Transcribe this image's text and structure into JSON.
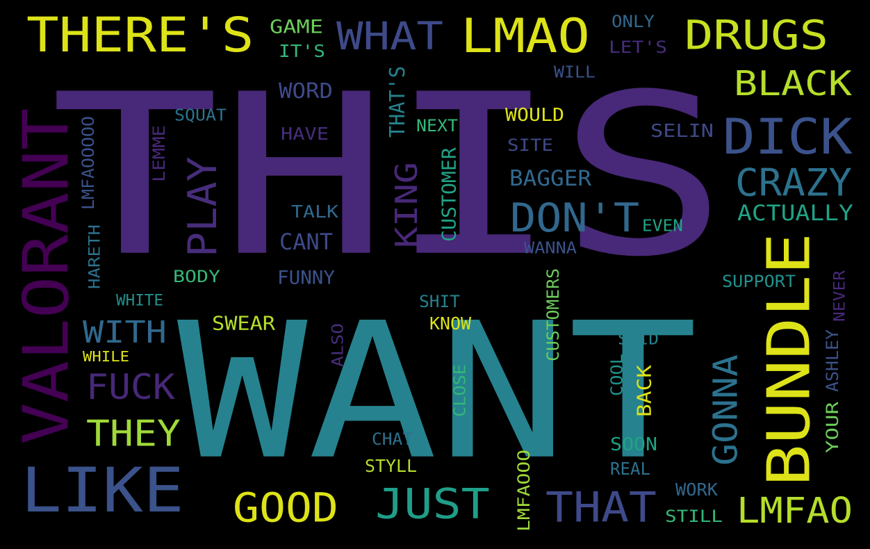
{
  "words": [
    {
      "id": "this",
      "text": "THIS",
      "color": "#482878"
    },
    {
      "id": "want",
      "text": "WANT",
      "color": "#26828e"
    },
    {
      "id": "valorant",
      "text": "VALORANT",
      "color": "#440154"
    },
    {
      "id": "bundle",
      "text": "BUNDLE",
      "color": "#dde318"
    },
    {
      "id": "like",
      "text": "LIKE",
      "color": "#3b528b"
    },
    {
      "id": "theres",
      "text": "THERE'S",
      "color": "#dde318"
    },
    {
      "id": "lmao",
      "text": "LMAO",
      "color": "#dde318"
    },
    {
      "id": "drugs",
      "text": "DRUGS",
      "color": "#c7e020"
    },
    {
      "id": "what",
      "text": "WHAT",
      "color": "#3e4a89"
    },
    {
      "id": "dick",
      "text": "DICK",
      "color": "#3b528b"
    },
    {
      "id": "black",
      "text": "BLACK",
      "color": "#b5de2b"
    },
    {
      "id": "crazy",
      "text": "CRAZY",
      "color": "#2c728e"
    },
    {
      "id": "dont",
      "text": "DON'T",
      "color": "#31688e"
    },
    {
      "id": "good",
      "text": "GOOD",
      "color": "#dde318"
    },
    {
      "id": "just",
      "text": "JUST",
      "color": "#1f9e89"
    },
    {
      "id": "that",
      "text": "THAT",
      "color": "#3e4a89"
    },
    {
      "id": "lmfao",
      "text": "LMFAO",
      "color": "#b5de2b"
    },
    {
      "id": "fuck",
      "text": "FUCK",
      "color": "#482878"
    },
    {
      "id": "with",
      "text": "WITH",
      "color": "#31688e"
    },
    {
      "id": "they",
      "text": "THEY",
      "color": "#a0da39"
    },
    {
      "id": "play",
      "text": "PLAY",
      "color": "#472d7b"
    },
    {
      "id": "king",
      "text": "KING",
      "color": "#482878"
    },
    {
      "id": "gonna",
      "text": "GONNA",
      "color": "#2c728e"
    },
    {
      "id": "actually",
      "text": "ACTUALLY",
      "color": "#20a386"
    },
    {
      "id": "game",
      "text": "GAME",
      "color": "#6ccd5a"
    },
    {
      "id": "its",
      "text": "IT'S",
      "color": "#35b779"
    },
    {
      "id": "only",
      "text": "ONLY",
      "color": "#31688e"
    },
    {
      "id": "lets",
      "text": "LET'S",
      "color": "#472d7b"
    },
    {
      "id": "will",
      "text": "WILL",
      "color": "#3b528b"
    },
    {
      "id": "word",
      "text": "WORD",
      "color": "#3e4a89"
    },
    {
      "id": "thats",
      "text": "THAT'S",
      "color": "#26828e"
    },
    {
      "id": "squat",
      "text": "SQUAT",
      "color": "#2c728e"
    },
    {
      "id": "have",
      "text": "HAVE",
      "color": "#472d7b"
    },
    {
      "id": "next",
      "text": "NEXT",
      "color": "#35b779"
    },
    {
      "id": "would",
      "text": "WOULD",
      "color": "#dde318"
    },
    {
      "id": "selin",
      "text": "SELIN",
      "color": "#3e4a89"
    },
    {
      "id": "site",
      "text": "SITE",
      "color": "#3e4a89"
    },
    {
      "id": "lmfaooooo",
      "text": "LMFAOOOOO",
      "color": "#3b528b"
    },
    {
      "id": "lemme",
      "text": "LEMME",
      "color": "#482878"
    },
    {
      "id": "customer",
      "text": "CUSTOMER",
      "color": "#20a386"
    },
    {
      "id": "bagger",
      "text": "BAGGER",
      "color": "#31688e"
    },
    {
      "id": "talk",
      "text": "TALK",
      "color": "#31688e"
    },
    {
      "id": "cant",
      "text": "CANT",
      "color": "#3e4a89"
    },
    {
      "id": "even",
      "text": "EVEN",
      "color": "#20a386"
    },
    {
      "id": "wanna",
      "text": "WANNA",
      "color": "#3b528b"
    },
    {
      "id": "hareth",
      "text": "HARETH",
      "color": "#2c728e"
    },
    {
      "id": "body",
      "text": "BODY",
      "color": "#35b779"
    },
    {
      "id": "funny",
      "text": "FUNNY",
      "color": "#3b528b"
    },
    {
      "id": "support",
      "text": "SUPPORT",
      "color": "#21918c"
    },
    {
      "id": "white",
      "text": "WHITE",
      "color": "#21918c"
    },
    {
      "id": "shit",
      "text": "SHIT",
      "color": "#26828e"
    },
    {
      "id": "customers",
      "text": "CUSTOMERS",
      "color": "#6ccd5a"
    },
    {
      "id": "never",
      "text": "NEVER",
      "color": "#482878"
    },
    {
      "id": "swear",
      "text": "SWEAR",
      "color": "#b5de2b"
    },
    {
      "id": "know",
      "text": "KNOW",
      "color": "#dde318"
    },
    {
      "id": "also",
      "text": "ALSO",
      "color": "#472d7b"
    },
    {
      "id": "said",
      "text": "SAID",
      "color": "#26828e"
    },
    {
      "id": "ashley",
      "text": "ASHLEY",
      "color": "#3b528b"
    },
    {
      "id": "while",
      "text": "WHILE",
      "color": "#dde318"
    },
    {
      "id": "cool",
      "text": "COOL",
      "color": "#21918c"
    },
    {
      "id": "back",
      "text": "BACK",
      "color": "#dde318"
    },
    {
      "id": "close",
      "text": "CLOSE",
      "color": "#35b779"
    },
    {
      "id": "your",
      "text": "YOUR",
      "color": "#6ccd5a"
    },
    {
      "id": "chat",
      "text": "CHAT",
      "color": "#2c728e"
    },
    {
      "id": "soon",
      "text": "SOON",
      "color": "#20a386"
    },
    {
      "id": "styll",
      "text": "STYLL",
      "color": "#b5de2b"
    },
    {
      "id": "real",
      "text": "REAL",
      "color": "#2c728e"
    },
    {
      "id": "lmfaooo",
      "text": "LMFAOOO",
      "color": "#a0da39"
    },
    {
      "id": "work",
      "text": "WORK",
      "color": "#31688e"
    },
    {
      "id": "still",
      "text": "STILL",
      "color": "#35b779"
    }
  ]
}
